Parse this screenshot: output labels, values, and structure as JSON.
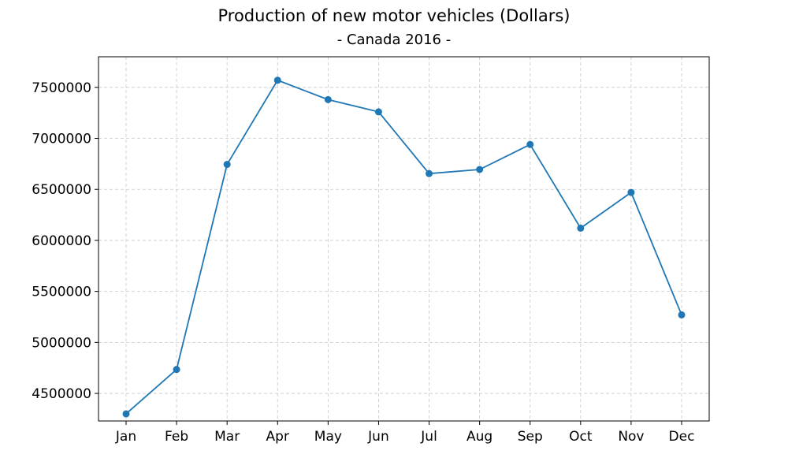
{
  "chart_data": {
    "type": "line",
    "title": "Production of new motor vehicles (Dollars)",
    "subtitle": "- Canada 2016 -",
    "xlabel": "",
    "ylabel": "",
    "categories": [
      "Jan",
      "Feb",
      "Mar",
      "Apr",
      "May",
      "Jun",
      "Jul",
      "Aug",
      "Sep",
      "Oct",
      "Nov",
      "Dec"
    ],
    "series": [
      {
        "values": [
          4300000,
          4735000,
          6745000,
          7570000,
          7380000,
          7260000,
          6655000,
          6695000,
          6940000,
          6120000,
          6470000,
          5270000
        ]
      }
    ],
    "ylim": [
      4230000,
      7800000
    ],
    "yticks": [
      4500000,
      5000000,
      5500000,
      6000000,
      6500000,
      7000000,
      7500000
    ],
    "ytick_labels": [
      "4500000",
      "5000000",
      "5500000",
      "6000000",
      "6500000",
      "7000000",
      "7500000"
    ],
    "grid": true,
    "line_color": "#1f77b4"
  }
}
